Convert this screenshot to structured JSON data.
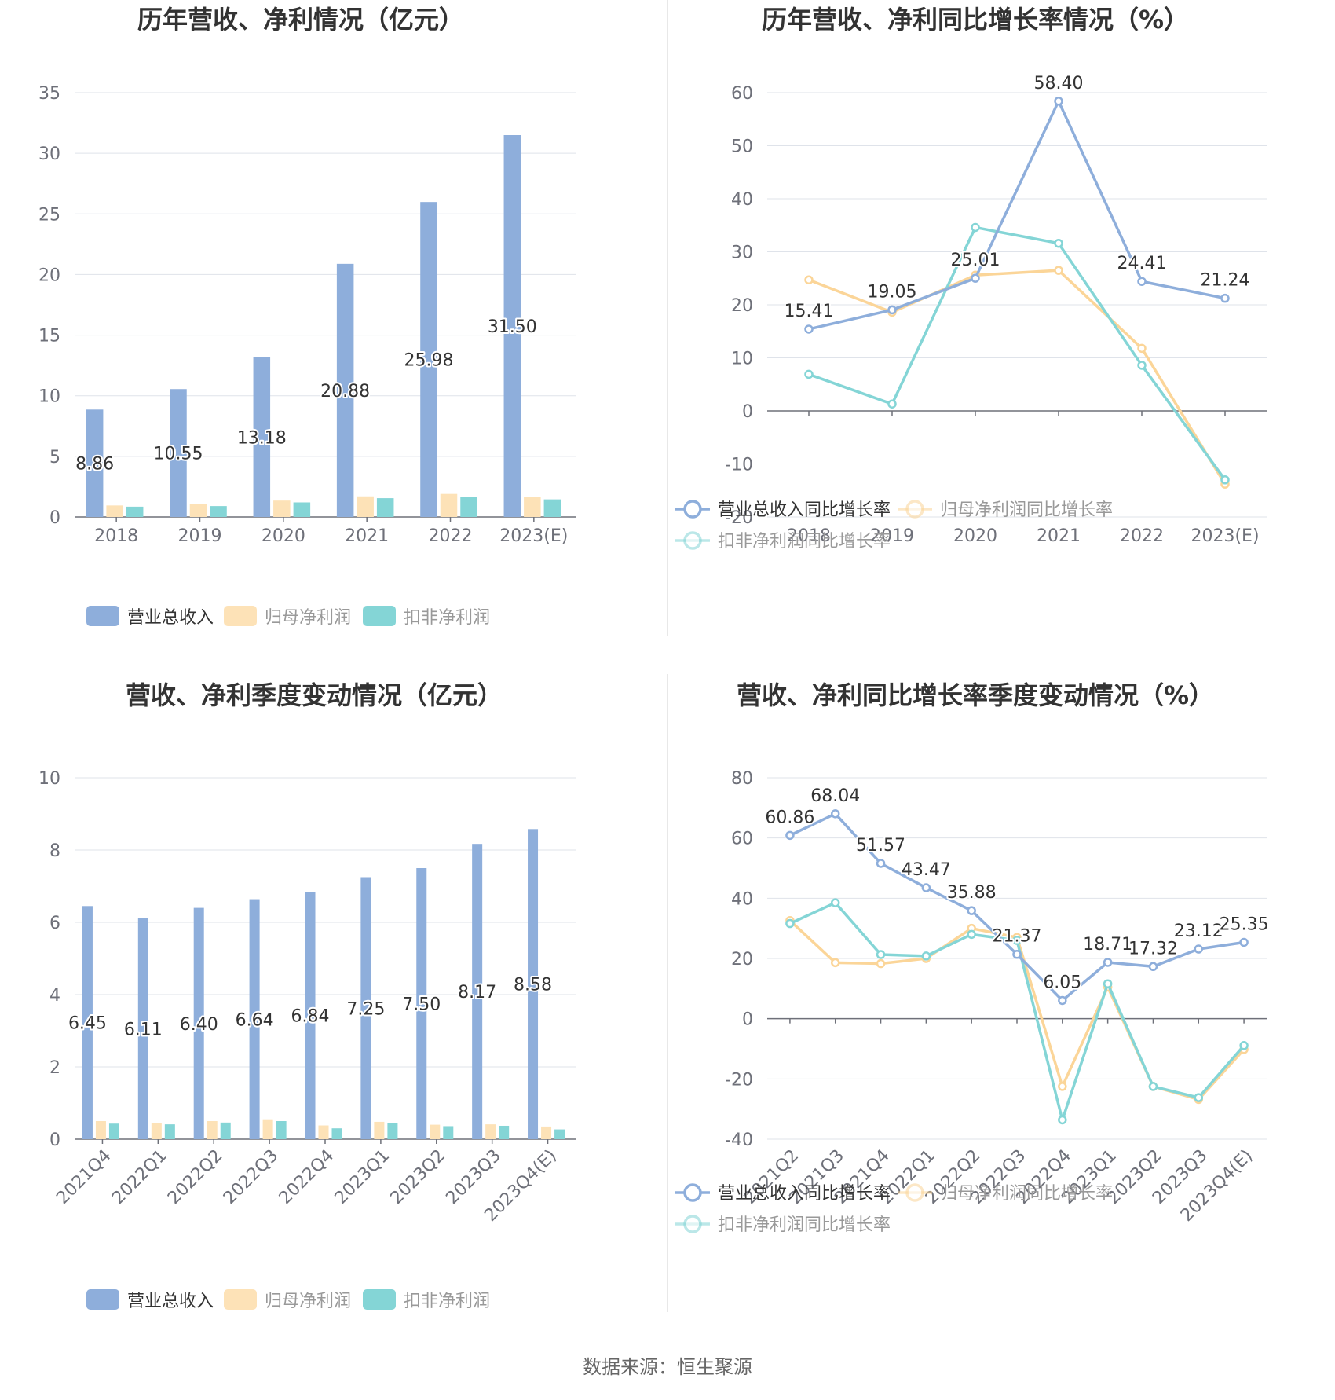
{
  "colors": {
    "revenue": "#8eaedb",
    "net_profit": "#fde2b7",
    "deducted_profit": "#84d5d6",
    "line_revenue": "#8eaedb",
    "line_net": "#fbd598",
    "line_deducted": "#84d5d6",
    "grid": "#dfe3ea",
    "axis": "#6e7079"
  },
  "footer": {
    "source": "数据来源：恒生聚源"
  },
  "chart_data": [
    {
      "id": "annual_amount",
      "type": "bar",
      "title": "历年营收、净利情况（亿元）",
      "categories": [
        "2018",
        "2019",
        "2020",
        "2021",
        "2022",
        "2023(E)"
      ],
      "ylim": [
        0,
        35
      ],
      "yticks": [
        0,
        5,
        10,
        15,
        20,
        25,
        30,
        35
      ],
      "grid": true,
      "legend_position": "bottom",
      "series": [
        {
          "name": "营业总收入",
          "values": [
            8.86,
            10.55,
            13.18,
            20.88,
            25.98,
            31.5
          ],
          "labels": [
            "8.86",
            "10.55",
            "13.18",
            "20.88",
            "25.98",
            "31.50"
          ]
        },
        {
          "name": "归母净利润",
          "values": [
            0.95,
            1.1,
            1.35,
            1.7,
            1.9,
            1.65
          ]
        },
        {
          "name": "扣非净利润",
          "values": [
            0.85,
            0.9,
            1.2,
            1.55,
            1.65,
            1.45
          ]
        }
      ]
    },
    {
      "id": "annual_growth",
      "type": "line",
      "title": "历年营收、净利同比增长率情况（%）",
      "categories": [
        "2018",
        "2019",
        "2020",
        "2021",
        "2022",
        "2023(E)"
      ],
      "ylim": [
        -20,
        60
      ],
      "yticks": [
        -20,
        -10,
        0,
        10,
        20,
        30,
        40,
        50,
        60
      ],
      "grid": true,
      "legend_position": "bottom",
      "series": [
        {
          "name": "营业总收入同比增长率",
          "values": [
            15.41,
            19.05,
            25.01,
            58.4,
            24.41,
            21.24
          ],
          "labels": [
            "15.41",
            "19.05",
            "25.01",
            "58.40",
            "24.41",
            "21.24"
          ]
        },
        {
          "name": "归母净利润同比增长率",
          "values": [
            24.7,
            18.6,
            25.6,
            26.5,
            11.8,
            -13.8
          ]
        },
        {
          "name": "扣非净利润同比增长率",
          "values": [
            6.9,
            1.3,
            34.6,
            31.6,
            8.6,
            -13.0
          ]
        }
      ]
    },
    {
      "id": "quarterly_amount",
      "type": "bar",
      "title": "营收、净利季度变动情况（亿元）",
      "categories": [
        "2021Q4",
        "2022Q1",
        "2022Q2",
        "2022Q3",
        "2022Q4",
        "2023Q1",
        "2023Q2",
        "2023Q3",
        "2023Q4(E)"
      ],
      "ylim": [
        0,
        10
      ],
      "yticks": [
        0,
        2,
        4,
        6,
        8,
        10
      ],
      "grid": true,
      "legend_position": "bottom",
      "series": [
        {
          "name": "营业总收入",
          "values": [
            6.45,
            6.11,
            6.4,
            6.64,
            6.84,
            7.25,
            7.5,
            8.17,
            8.58
          ],
          "labels": [
            "6.45",
            "6.11",
            "6.40",
            "6.64",
            "6.84",
            "7.25",
            "7.50",
            "8.17",
            "8.58"
          ]
        },
        {
          "name": "归母净利润",
          "values": [
            0.5,
            0.44,
            0.5,
            0.55,
            0.38,
            0.48,
            0.4,
            0.41,
            0.35
          ]
        },
        {
          "name": "扣非净利润",
          "values": [
            0.43,
            0.41,
            0.46,
            0.5,
            0.3,
            0.45,
            0.36,
            0.37,
            0.27
          ]
        }
      ]
    },
    {
      "id": "quarterly_growth",
      "type": "line",
      "title": "营收、净利同比增长率季度变动情况（%）",
      "categories": [
        "2021Q2",
        "2021Q3",
        "2021Q4",
        "2022Q1",
        "2022Q2",
        "2022Q3",
        "2022Q4",
        "2023Q1",
        "2023Q2",
        "2023Q3",
        "2023Q4(E)"
      ],
      "ylim": [
        -40,
        80
      ],
      "yticks": [
        -40,
        -20,
        0,
        20,
        40,
        60,
        80
      ],
      "grid": true,
      "legend_position": "bottom",
      "series": [
        {
          "name": "营业总收入同比增长率",
          "values": [
            60.86,
            68.04,
            51.57,
            43.47,
            35.88,
            21.37,
            6.05,
            18.71,
            17.32,
            23.12,
            25.35
          ],
          "labels": [
            "60.86",
            "68.04",
            "51.57",
            "43.47",
            "35.88",
            "21.37",
            "6.05",
            "18.71",
            "17.32",
            "23.12",
            "25.35"
          ]
        },
        {
          "name": "归母净利润同比增长率",
          "values": [
            32.6,
            18.6,
            18.3,
            20.0,
            30.0,
            27.0,
            -22.5,
            10.5,
            -22.5,
            -26.8,
            -10.2
          ]
        },
        {
          "name": "扣非净利润同比增长率",
          "values": [
            31.6,
            38.5,
            21.3,
            20.8,
            28.0,
            26.0,
            -33.6,
            11.6,
            -22.5,
            -26.2,
            -8.9
          ]
        }
      ]
    }
  ]
}
